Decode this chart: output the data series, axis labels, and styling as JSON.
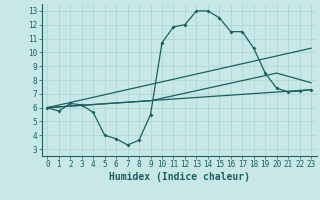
{
  "line1_x": [
    0,
    1,
    2,
    3,
    4,
    5,
    6,
    7,
    8,
    9,
    10,
    11,
    12,
    13,
    14,
    15,
    16,
    17,
    18,
    19,
    20,
    21,
    22,
    23
  ],
  "line1_y": [
    6.0,
    5.75,
    6.3,
    6.2,
    5.65,
    4.0,
    3.75,
    3.3,
    3.65,
    5.5,
    10.7,
    11.85,
    12.0,
    13.0,
    13.0,
    12.5,
    11.5,
    11.5,
    10.3,
    8.5,
    7.4,
    7.15,
    7.2,
    7.3
  ],
  "line2_x": [
    0,
    9,
    20,
    23
  ],
  "line2_y": [
    6.0,
    6.5,
    8.5,
    7.8
  ],
  "line3_x": [
    0,
    23
  ],
  "line3_y": [
    6.0,
    10.3
  ],
  "line4_x": [
    0,
    23
  ],
  "line4_y": [
    6.0,
    7.3
  ],
  "line_color": "#1a6060",
  "bg_color": "#c8e8e8",
  "grid_color": "#b0d8d8",
  "xlabel": "Humidex (Indice chaleur)",
  "xlim": [
    -0.5,
    23.5
  ],
  "ylim": [
    2.5,
    13.5
  ],
  "xticks": [
    0,
    1,
    2,
    3,
    4,
    5,
    6,
    7,
    8,
    9,
    10,
    11,
    12,
    13,
    14,
    15,
    16,
    17,
    18,
    19,
    20,
    21,
    22,
    23
  ],
  "yticks": [
    3,
    4,
    5,
    6,
    7,
    8,
    9,
    10,
    11,
    12,
    13
  ],
  "xlabel_fontsize": 7,
  "tick_fontsize": 5.5
}
